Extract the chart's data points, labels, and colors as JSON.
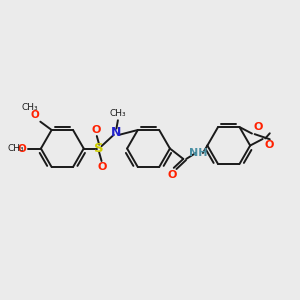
{
  "bg": "#ebebeb",
  "bc": "#1a1a1a",
  "bw": 1.4,
  "col_O": "#ff2000",
  "col_N_blue": "#2222cc",
  "col_N_teal": "#4a90a4",
  "col_S": "#cccc00",
  "col_black": "#1a1a1a",
  "figsize": [
    3.0,
    3.0
  ],
  "dpi": 100,
  "xlim": [
    0,
    10
  ],
  "ylim": [
    1.5,
    8.5
  ]
}
